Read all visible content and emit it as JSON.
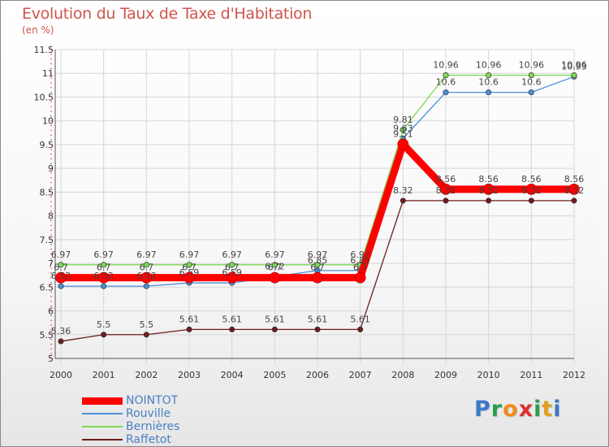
{
  "chart_data": {
    "type": "line",
    "title": "Evolution du Taux de Taxe d'Habitation",
    "unit_label": "(en %)",
    "categories": [
      "2000",
      "2001",
      "2002",
      "2003",
      "2004",
      "2005",
      "2006",
      "2007",
      "2008",
      "2009",
      "2010",
      "2011",
      "2012"
    ],
    "ylim": [
      5,
      11.5
    ],
    "yticks": [
      "5",
      "5.5",
      "6",
      "6.5",
      "7",
      "7.5",
      "8",
      "8.5",
      "9",
      "9.5",
      "10",
      "10.5",
      "11",
      "11.5"
    ],
    "grid": true,
    "legend_position": "bottom-left",
    "series": [
      {
        "name": "NOINTOT",
        "color": "#ff0000",
        "emphasis": true,
        "values": [
          6.7,
          6.7,
          6.7,
          6.7,
          6.7,
          6.7,
          6.7,
          6.7,
          9.51,
          8.56,
          8.56,
          8.56,
          8.56
        ],
        "labels": [
          "6.7",
          "6.7",
          "6.7",
          "6.7",
          "6.7",
          "6.7",
          "6.7",
          "6.7",
          "9.51",
          "8.56",
          "8.56",
          "8.56",
          "8.56"
        ]
      },
      {
        "name": "Rouville",
        "color": "#4a90d9",
        "values": [
          6.52,
          6.52,
          6.52,
          6.59,
          6.59,
          6.72,
          6.85,
          6.85,
          9.63,
          10.6,
          10.6,
          10.6,
          10.93
        ],
        "labels": [
          "6.52",
          "6.52",
          "6.52",
          "6.59",
          "6.59",
          "6.72",
          "6.85",
          "6.85",
          "9.63",
          "10.6",
          "10.6",
          "10.6",
          "10.93"
        ]
      },
      {
        "name": "Bernières",
        "color": "#7ed957",
        "values": [
          6.97,
          6.97,
          6.97,
          6.97,
          6.97,
          6.97,
          6.97,
          6.97,
          9.81,
          10.96,
          10.96,
          10.96,
          10.96
        ],
        "labels": [
          "6.97",
          "6.97",
          "6.97",
          "6.97",
          "6.97",
          "6.97",
          "6.97",
          "6.97",
          "9.81",
          "10.96",
          "10.96",
          "10.96",
          "10.96"
        ]
      },
      {
        "name": "Raffetot",
        "color": "#6e1c1c",
        "values": [
          5.36,
          5.5,
          5.5,
          5.61,
          5.61,
          5.61,
          5.61,
          5.61,
          8.32,
          8.32,
          8.32,
          8.32,
          8.32
        ],
        "labels": [
          "5.36",
          "5.5",
          "5.5",
          "5.61",
          "5.61",
          "5.61",
          "5.61",
          "5.61",
          "8.32",
          "8.32",
          "8.32",
          "8.32",
          "8.32"
        ]
      }
    ]
  },
  "brand": {
    "letters": [
      "P",
      "r",
      "o",
      "x",
      "i",
      "t",
      "i"
    ],
    "colors": [
      "#3b78c9",
      "#2a9d4b",
      "#f08a1c",
      "#e03030",
      "#2a9d4b",
      "#e0a020",
      "#3b78c9"
    ]
  }
}
